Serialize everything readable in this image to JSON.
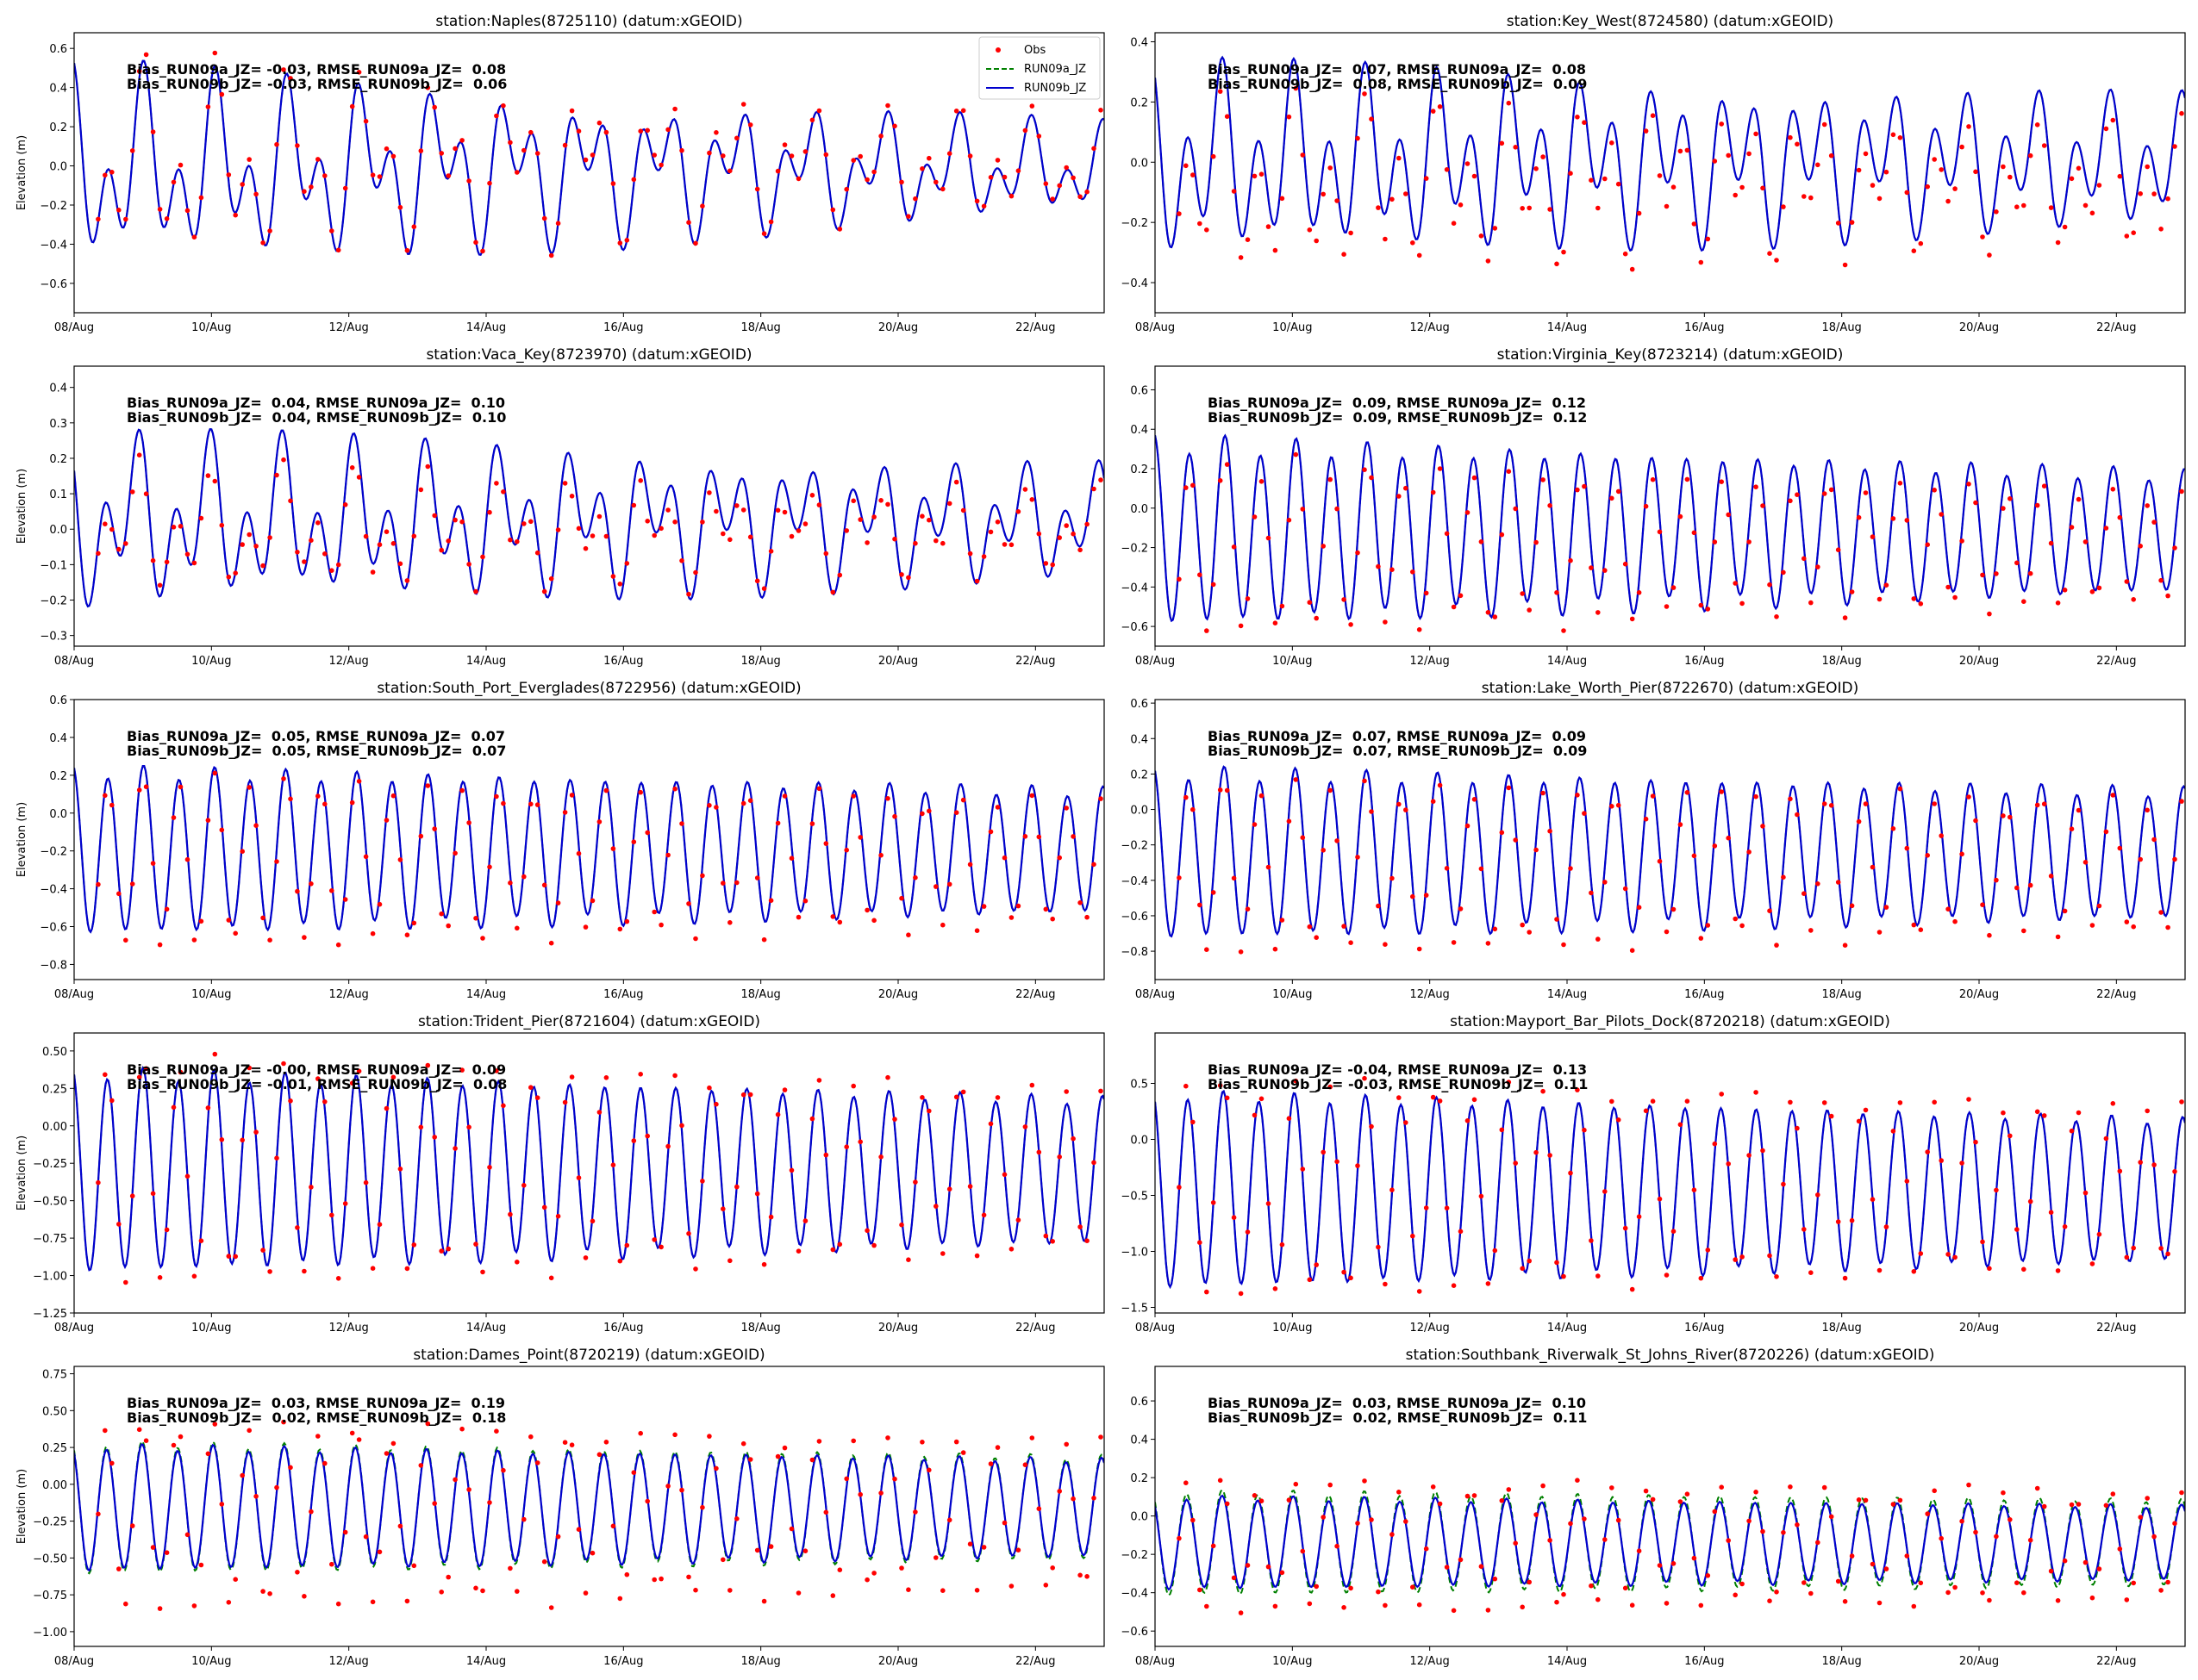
{
  "figure": {
    "colors": {
      "obs": "#ff0000",
      "run09a": "#008000",
      "run09b": "#0000cd"
    },
    "legend_position": "top-right",
    "legend_entries": [
      "Obs",
      "RUN09a_JZ",
      "RUN09b_JZ"
    ],
    "x_tick_labels": [
      "08/Aug",
      "10/Aug",
      "12/Aug",
      "14/Aug",
      "16/Aug",
      "18/Aug",
      "20/Aug",
      "22/Aug"
    ],
    "ylabel": "Elevation (m)"
  },
  "chart_data": [
    {
      "type": "line",
      "title": "station:Naples(8725110) (datum:xGEOID)",
      "ylabel": "Elevation (m)",
      "xlim": [
        0,
        15
      ],
      "ylim": [
        -0.75,
        0.68
      ],
      "yticks": [
        -0.6,
        -0.4,
        -0.2,
        0.0,
        0.2,
        0.4,
        0.6
      ],
      "ytick_labels": [
        "−0.6",
        "−0.4",
        "−0.2",
        "0.0",
        "0.2",
        "0.4",
        "0.6"
      ],
      "stats": [
        "Bias_RUN09a_JZ= -0.03, RMSE_RUN09a_JZ=  0.08",
        "Bias_RUN09b_JZ= -0.03, RMSE_RUN09b_JZ=  0.06"
      ],
      "legend": true,
      "model": {
        "mean": -0.02,
        "amp_start": 0.58,
        "amp_end": 0.26,
        "semi_frac": 0.5,
        "diurnal_frac": 0.5,
        "phase": 0.3
      },
      "obs": {
        "dmean": 0.02,
        "dscale": 1.06
      },
      "run09a_offset": 0.0
    },
    {
      "type": "line",
      "title": "station:Key_West(8724580) (datum:xGEOID)",
      "ylabel": "",
      "xlim": [
        0,
        15
      ],
      "ylim": [
        -0.5,
        0.43
      ],
      "yticks": [
        -0.4,
        -0.2,
        0.0,
        0.2,
        0.4
      ],
      "ytick_labels": [
        "−0.4",
        "−0.2",
        "0.0",
        "0.2",
        "0.4"
      ],
      "stats": [
        "Bias_RUN09a_JZ=  0.07, RMSE_RUN09a_JZ=  0.08",
        "Bias_RUN09b_JZ=  0.08, RMSE_RUN09b_JZ=  0.09"
      ],
      "legend": false,
      "model": {
        "mean": 0.0,
        "amp_start": 0.36,
        "amp_end": 0.24,
        "semi_frac": 0.6,
        "diurnal_frac": 0.4,
        "phase": 0.6
      },
      "obs": {
        "dmean": -0.08,
        "dscale": 0.95
      },
      "run09a_offset": 0.0
    },
    {
      "type": "line",
      "title": "station:Vaca_Key(8723970) (datum:xGEOID)",
      "ylabel": "Elevation (m)",
      "xlim": [
        0,
        15
      ],
      "ylim": [
        -0.33,
        0.46
      ],
      "yticks": [
        -0.3,
        -0.2,
        -0.1,
        0.0,
        0.1,
        0.2,
        0.3,
        0.4
      ],
      "ytick_labels": [
        "−0.3",
        "−0.2",
        "−0.1",
        "0.0",
        "0.1",
        "0.2",
        "0.3",
        "0.4"
      ],
      "stats": [
        "Bias_RUN09a_JZ=  0.04, RMSE_RUN09a_JZ=  0.10",
        "Bias_RUN09b_JZ=  0.04, RMSE_RUN09b_JZ=  0.10"
      ],
      "legend": false,
      "model": {
        "mean": 0.02,
        "amp_start": 0.28,
        "amp_end": 0.18,
        "semi_frac": 0.55,
        "diurnal_frac": 0.45,
        "phase": 0.9
      },
      "obs": {
        "dmean": -0.03,
        "dscale": 0.75
      },
      "run09a_offset": 0.0
    },
    {
      "type": "line",
      "title": "station:Virginia_Key(8723214) (datum:xGEOID)",
      "ylabel": "",
      "xlim": [
        0,
        15
      ],
      "ylim": [
        -0.7,
        0.72
      ],
      "yticks": [
        -0.6,
        -0.4,
        -0.2,
        0.0,
        0.2,
        0.4,
        0.6
      ],
      "ytick_labels": [
        "−0.6",
        "−0.4",
        "−0.2",
        "0.0",
        "0.2",
        "0.4",
        "0.6"
      ],
      "stats": [
        "Bias_RUN09a_JZ=  0.09, RMSE_RUN09a_JZ=  0.12",
        "Bias_RUN09b_JZ=  0.09, RMSE_RUN09b_JZ=  0.12"
      ],
      "legend": false,
      "model": {
        "mean": -0.12,
        "amp_start": 0.5,
        "amp_end": 0.32,
        "semi_frac": 0.9,
        "diurnal_frac": 0.1,
        "phase": 0.2
      },
      "obs": {
        "dmean": -0.08,
        "dscale": 0.95
      },
      "run09a_offset": 0.0
    },
    {
      "type": "line",
      "title": "station:South_Port_Everglades(8722956) (datum:xGEOID)",
      "ylabel": "Elevation (m)",
      "xlim": [
        0,
        15
      ],
      "ylim": [
        -0.88,
        0.6
      ],
      "yticks": [
        -0.8,
        -0.6,
        -0.4,
        -0.2,
        0.0,
        0.2,
        0.4,
        0.6
      ],
      "ytick_labels": [
        "−0.8",
        "−0.6",
        "−0.4",
        "−0.2",
        "0.0",
        "0.2",
        "0.4",
        "0.6"
      ],
      "stats": [
        "Bias_RUN09a_JZ=  0.05, RMSE_RUN09a_JZ=  0.07",
        "Bias_RUN09b_JZ=  0.05, RMSE_RUN09b_JZ=  0.07"
      ],
      "legend": false,
      "model": {
        "mean": -0.2,
        "amp_start": 0.46,
        "amp_end": 0.34,
        "semi_frac": 0.92,
        "diurnal_frac": 0.08,
        "phase": 0.3
      },
      "obs": {
        "dmean": -0.06,
        "dscale": 1.05
      },
      "run09a_offset": 0.0
    },
    {
      "type": "line",
      "title": "station:Lake_Worth_Pier(8722670) (datum:xGEOID)",
      "ylabel": "",
      "xlim": [
        0,
        15
      ],
      "ylim": [
        -0.96,
        0.62
      ],
      "yticks": [
        -0.8,
        -0.6,
        -0.4,
        -0.2,
        0.0,
        0.2,
        0.4,
        0.6
      ],
      "ytick_labels": [
        "−0.8",
        "−0.6",
        "−0.4",
        "−0.2",
        "0.0",
        "0.2",
        "0.4",
        "0.6"
      ],
      "stats": [
        "Bias_RUN09a_JZ=  0.07, RMSE_RUN09a_JZ=  0.09",
        "Bias_RUN09b_JZ=  0.07, RMSE_RUN09b_JZ=  0.09"
      ],
      "legend": false,
      "model": {
        "mean": -0.25,
        "amp_start": 0.5,
        "amp_end": 0.38,
        "semi_frac": 0.92,
        "diurnal_frac": 0.08,
        "phase": 0.35
      },
      "obs": {
        "dmean": -0.07,
        "dscale": 1.05
      },
      "run09a_offset": 0.0
    },
    {
      "type": "line",
      "title": "station:Trident_Pier(8721604) (datum:xGEOID)",
      "ylabel": "Elevation (m)",
      "xlim": [
        0,
        15
      ],
      "ylim": [
        -1.25,
        0.62
      ],
      "yticks": [
        -1.25,
        -1.0,
        -0.75,
        -0.5,
        -0.25,
        0.0,
        0.25,
        0.5
      ],
      "ytick_labels": [
        "−1.25",
        "−1.00",
        "−0.75",
        "−0.50",
        "−0.25",
        "0.00",
        "0.25",
        "0.50"
      ],
      "stats": [
        "Bias_RUN09a_JZ= -0.00, RMSE_RUN09a_JZ=  0.09",
        "Bias_RUN09b_JZ= -0.01, RMSE_RUN09b_JZ=  0.08"
      ],
      "legend": false,
      "model": {
        "mean": -0.3,
        "amp_start": 0.7,
        "amp_end": 0.5,
        "semi_frac": 0.94,
        "diurnal_frac": 0.06,
        "phase": 0.4
      },
      "obs": {
        "dmean": 0.0,
        "dscale": 1.15
      },
      "run09a_offset": 0.0
    },
    {
      "type": "line",
      "title": "station:Mayport_Bar_Pilots_Dock(8720218) (datum:xGEOID)",
      "ylabel": "",
      "xlim": [
        0,
        15
      ],
      "ylim": [
        -1.55,
        0.95
      ],
      "yticks": [
        -1.5,
        -1.0,
        -0.5,
        0.0,
        0.5
      ],
      "ytick_labels": [
        "−1.5",
        "−1.0",
        "−0.5",
        "0.0",
        "0.5"
      ],
      "stats": [
        "Bias_RUN09a_JZ= -0.04, RMSE_RUN09a_JZ=  0.13",
        "Bias_RUN09b_JZ= -0.03, RMSE_RUN09b_JZ=  0.11"
      ],
      "legend": false,
      "model": {
        "mean": -0.45,
        "amp_start": 0.9,
        "amp_end": 0.65,
        "semi_frac": 0.95,
        "diurnal_frac": 0.05,
        "phase": 0.5
      },
      "obs": {
        "dmean": 0.03,
        "dscale": 1.15
      },
      "run09a_offset": 0.0
    },
    {
      "type": "line",
      "title": "station:Dames_Point(8720219) (datum:xGEOID)",
      "ylabel": "Elevation (m)",
      "xlim": [
        0,
        15
      ],
      "ylim": [
        -1.1,
        0.8
      ],
      "yticks": [
        -1.0,
        -0.75,
        -0.5,
        -0.25,
        0.0,
        0.25,
        0.5,
        0.75
      ],
      "ytick_labels": [
        "−1.00",
        "−0.75",
        "−0.50",
        "−0.25",
        "0.00",
        "0.25",
        "0.50",
        "0.75"
      ],
      "stats": [
        "Bias_RUN09a_JZ=  0.03, RMSE_RUN09a_JZ=  0.19",
        "Bias_RUN09b_JZ=  0.02, RMSE_RUN09b_JZ=  0.18"
      ],
      "legend": false,
      "model": {
        "mean": -0.16,
        "amp_start": 0.44,
        "amp_end": 0.34,
        "semi_frac": 0.95,
        "diurnal_frac": 0.05,
        "phase": 0.55
      },
      "obs": {
        "dmean": -0.05,
        "dscale": 1.55
      },
      "run09a_offset": 0.02
    },
    {
      "type": "line",
      "title": "station:Southbank_Riverwalk_St_Johns_River(8720226) (datum:xGEOID)",
      "ylabel": "",
      "xlim": [
        0,
        15
      ],
      "ylim": [
        -0.68,
        0.78
      ],
      "yticks": [
        -0.6,
        -0.4,
        -0.2,
        0.0,
        0.2,
        0.4,
        0.6
      ],
      "ytick_labels": [
        "−0.6",
        "−0.4",
        "−0.2",
        "0.0",
        "0.2",
        "0.4",
        "0.6"
      ],
      "stats": [
        "Bias_RUN09a_JZ=  0.03, RMSE_RUN09a_JZ=  0.10",
        "Bias_RUN09b_JZ=  0.02, RMSE_RUN09b_JZ=  0.11"
      ],
      "legend": false,
      "model": {
        "mean": -0.14,
        "amp_start": 0.25,
        "amp_end": 0.2,
        "semi_frac": 0.95,
        "diurnal_frac": 0.05,
        "phase": 0.7
      },
      "obs": {
        "dmean": -0.02,
        "dscale": 1.45
      },
      "run09a_offset": 0.03
    }
  ]
}
